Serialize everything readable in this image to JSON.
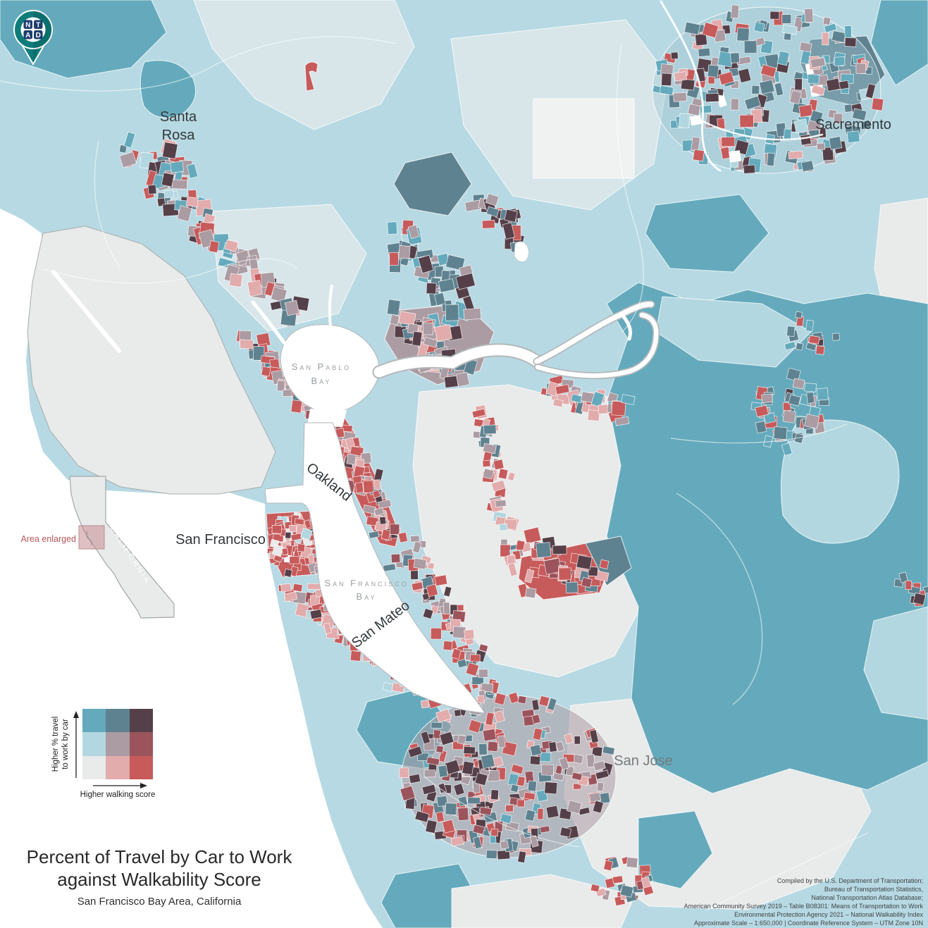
{
  "logo": {
    "letters": [
      "N",
      "T",
      "A",
      "D"
    ]
  },
  "title": {
    "line1": "Percent of Travel by Car to Work",
    "line2": "against Walkability Score",
    "subtitle": "San Francisco Bay Area, California"
  },
  "map_labels": {
    "santa_rosa_line1": "Santa",
    "santa_rosa_line2": "Rosa",
    "sacramento": "Sacremento",
    "san_francisco": "San Francisco",
    "oakland": "Oakland",
    "san_mateo": "San Mateo",
    "san_jose": "San Jose",
    "san_pablo_bay_line1": "San Pablo",
    "san_pablo_bay_line2": "Bay",
    "sf_bay_line1": "San Francisco",
    "sf_bay_line2": "Bay"
  },
  "inset": {
    "area_label": "Area enlarged",
    "state_label": "CALIFORNIA"
  },
  "legend": {
    "y_label_line1": "Higher % travel",
    "y_label_line2": "to work by car",
    "x_label": "Higher walking score",
    "matrix": [
      [
        "#64aabc",
        "#5f8290",
        "#554049"
      ],
      [
        "#b3d7e0",
        "#ab9ba2",
        "#9c545c"
      ],
      [
        "#e9eaea",
        "#e2abac",
        "#c75b5b"
      ]
    ]
  },
  "attribution": {
    "lines": [
      "Compiled by the U.S. Department of Transportation;",
      "Bureau of Transportation Statistics,",
      "National Transportation Atlas Database;",
      "American Community Survey 2019 – Table B08301: Means of Transportation to Work",
      "Environmental Protection Agency 2021 – National Walkability Index",
      "Approximate Scale – 1:650,000 | Coordinate Reference System – UTM Zone 10N"
    ]
  },
  "palette": {
    "gray": "#e9eaea",
    "pink": "#e2abac",
    "red": "#c75b5b",
    "lblue": "#b3d7e0",
    "mauve": "#ab9ba2",
    "drose": "#9c545c",
    "teal": "#64aabc",
    "slate": "#5f8290",
    "dark": "#554049",
    "white": "#ffffff",
    "base": "#b7d9e3",
    "pale": "#d8e6ea",
    "nearwhite": "#f0f2f2",
    "logo_teal": "#0d7c7a",
    "logo_navy": "#1d3e6d"
  }
}
